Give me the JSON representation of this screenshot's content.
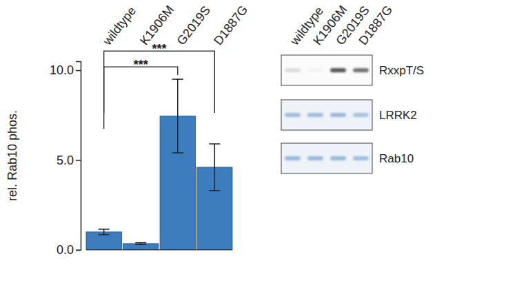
{
  "chart_data": {
    "type": "bar",
    "y_label": "rel. Rab10 phos.",
    "categories": [
      "wildtype",
      "K1906M",
      "G2019S",
      "D1887G"
    ],
    "values": [
      1.0,
      0.35,
      7.45,
      4.6
    ],
    "errors": [
      0.15,
      0.05,
      2.05,
      1.3
    ],
    "color": "#3d7dbd",
    "ylim": [
      0,
      10.5
    ],
    "yticks": [
      {
        "value": 0,
        "label": "0.0"
      },
      {
        "value": 5,
        "label": "5.0"
      },
      {
        "value": 10,
        "label": "10.0"
      }
    ],
    "grid": false,
    "annotations": [
      {
        "from": 0,
        "to": 2,
        "label": "***"
      },
      {
        "from": 0,
        "to": 3,
        "label": "***"
      }
    ]
  },
  "blot": {
    "lanes": [
      "wildtype",
      "K1906M",
      "G2019S",
      "D1887G"
    ],
    "rows": [
      {
        "label": "RxxpT/S",
        "color": "#2a2a2a",
        "intensity": [
          0.15,
          0.03,
          0.8,
          0.65
        ]
      },
      {
        "label": "LRRK2",
        "color": "#5f8fc8",
        "intensity": [
          0.55,
          0.55,
          0.6,
          0.5
        ]
      },
      {
        "label": "Rab10",
        "color": "#5f8fc8",
        "intensity": [
          0.6,
          0.6,
          0.6,
          0.55
        ]
      }
    ]
  }
}
